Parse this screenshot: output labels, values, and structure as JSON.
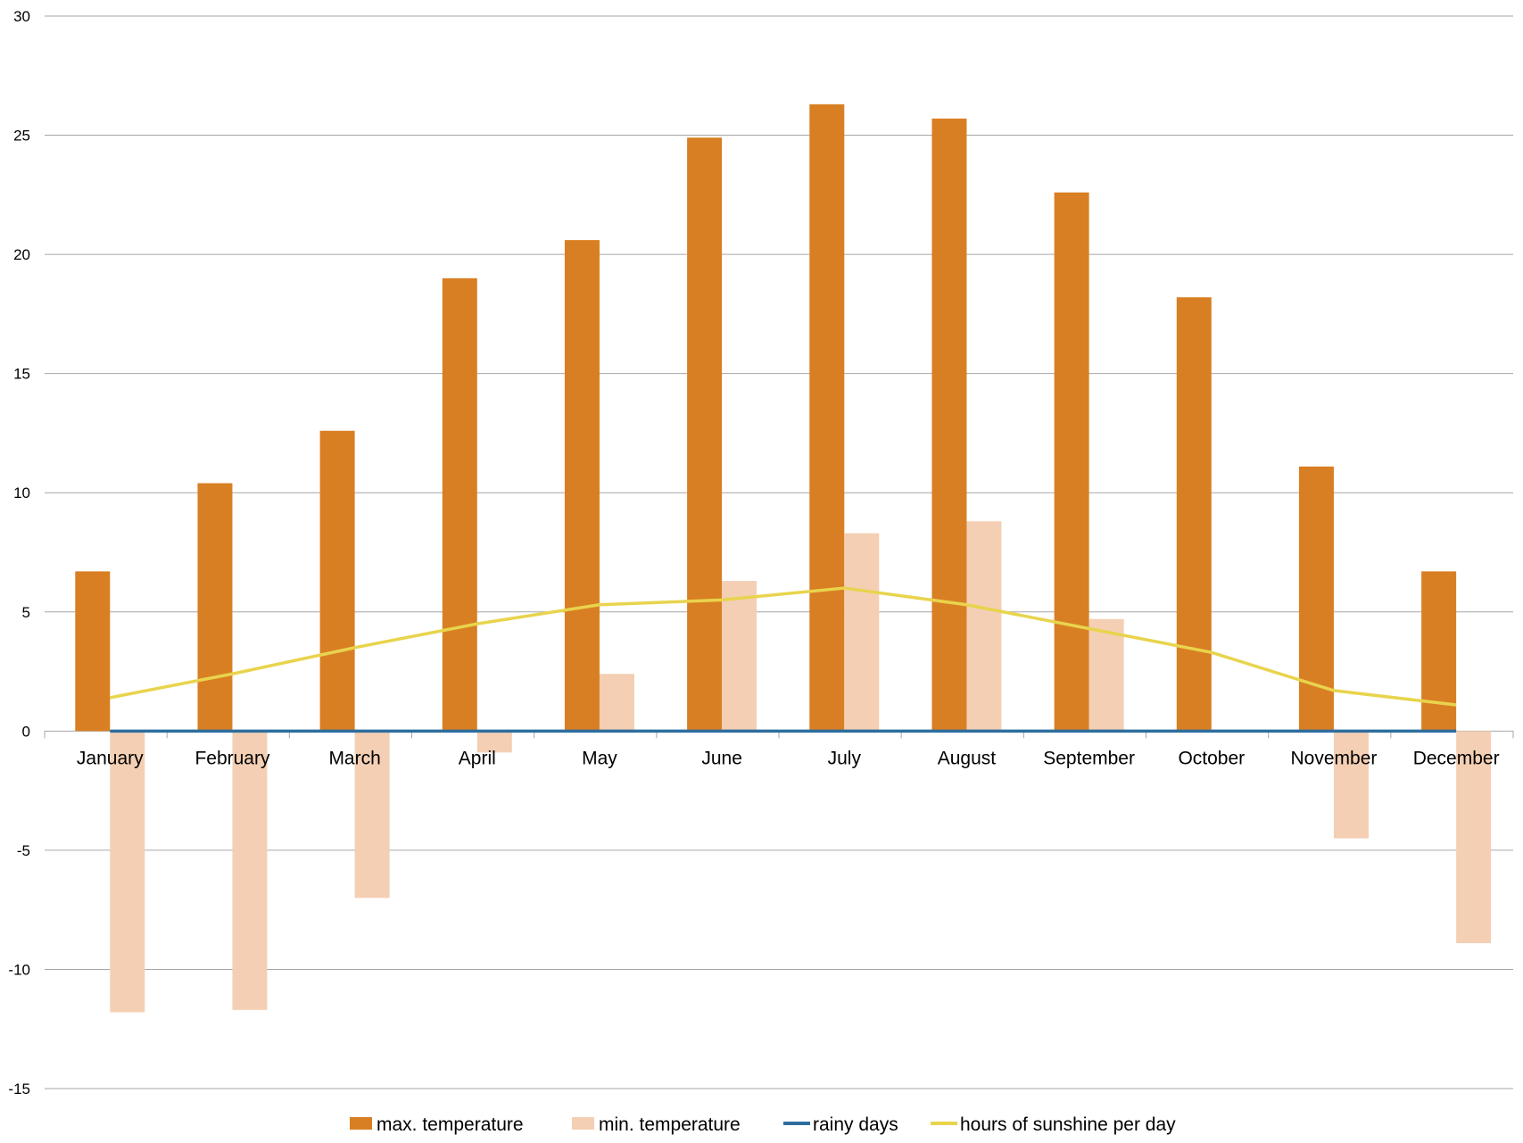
{
  "chart_data": {
    "type": "bar",
    "categories": [
      "January",
      "February",
      "March",
      "April",
      "May",
      "June",
      "July",
      "August",
      "September",
      "October",
      "November",
      "December"
    ],
    "ylim": [
      -15,
      30
    ],
    "yticks": [
      30,
      25,
      20,
      15,
      10,
      5,
      0,
      -5,
      -10,
      -15
    ],
    "grid": true,
    "legend_position": "bottom",
    "series": [
      {
        "name": "max.  temperature",
        "kind": "bar",
        "color": "#d97f23",
        "values": [
          6.7,
          10.4,
          12.6,
          19.0,
          20.6,
          24.9,
          26.3,
          25.7,
          22.6,
          18.2,
          11.1,
          6.7
        ]
      },
      {
        "name": "min. temperature",
        "kind": "bar",
        "color": "#f4cfb4",
        "values": [
          -11.8,
          -11.7,
          -7.0,
          -0.9,
          2.4,
          6.3,
          8.3,
          8.8,
          4.7,
          0,
          -4.5,
          -8.9
        ]
      },
      {
        "name": "rainy days",
        "kind": "line",
        "color": "#2e6e9e",
        "values": [
          0,
          0,
          0,
          0,
          0,
          0,
          0,
          0,
          0,
          0,
          0,
          0
        ]
      },
      {
        "name": "hours of sunshine per day",
        "kind": "line",
        "color": "#e8d44d",
        "values": [
          1.4,
          2.4,
          3.5,
          4.5,
          5.3,
          5.5,
          6.0,
          5.3,
          4.3,
          3.3,
          1.7,
          1.1
        ]
      }
    ]
  }
}
